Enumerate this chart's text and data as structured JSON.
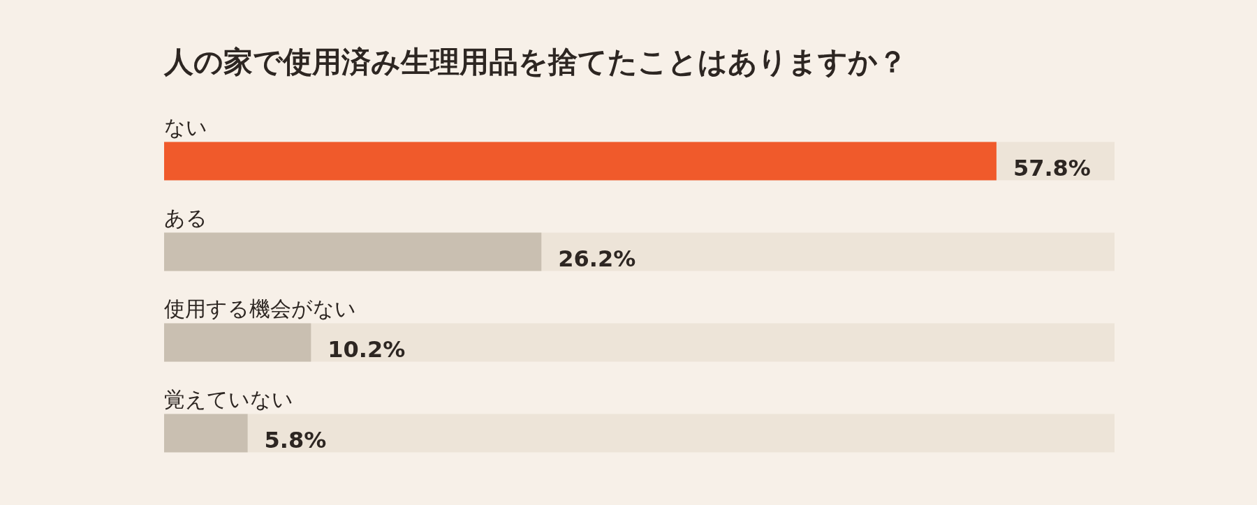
{
  "chart_data": {
    "type": "bar",
    "orientation": "horizontal",
    "title": "人の家で使用済み生理用品を捨てたことはありますか？",
    "categories": [
      "ない",
      "ある",
      "使用する機会がない",
      "覚えていない"
    ],
    "values": [
      57.8,
      26.2,
      10.2,
      5.8
    ],
    "colors": [
      "#f05a2b",
      "#c9bfb1",
      "#c9bfb1",
      "#c9bfb1"
    ],
    "value_labels": [
      "57.8%",
      "26.2%",
      "10.2%",
      "5.8%"
    ],
    "xlim": [
      0,
      66
    ]
  }
}
